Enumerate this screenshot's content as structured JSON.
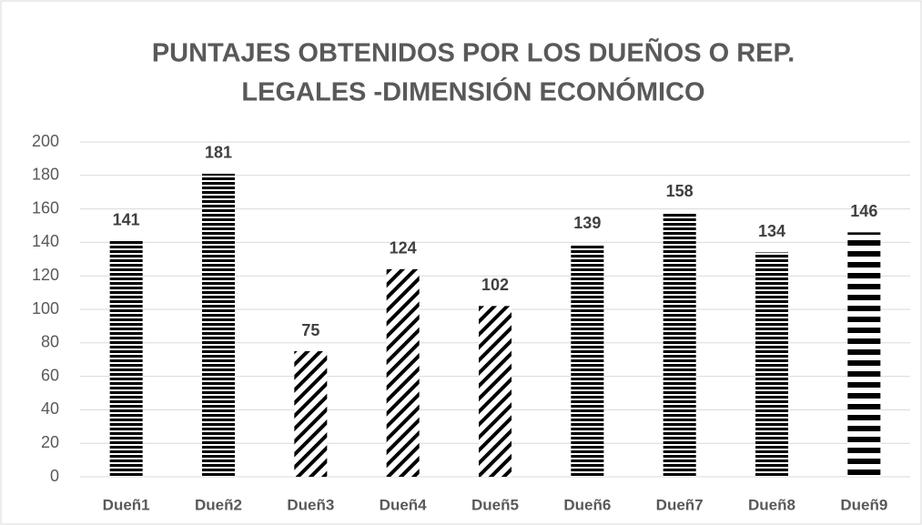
{
  "chart_data": {
    "type": "bar",
    "title": [
      "PUNTAJES OBTENIDOS POR LOS DUEÑOS O REP.",
      "LEGALES -DIMENSIÓN ECONÓMICO"
    ],
    "categories": [
      "Dueñ1",
      "Dueñ2",
      "Dueñ3",
      "Dueñ4",
      "Dueñ5",
      "Dueñ6",
      "Dueñ7",
      "Dueñ8",
      "Dueñ9"
    ],
    "values": [
      141,
      181,
      75,
      124,
      102,
      139,
      158,
      134,
      146
    ],
    "patterns": [
      "horizontal",
      "horizontal",
      "diagonal",
      "diagonal",
      "diagonal",
      "horizontal",
      "horizontal",
      "horizontal",
      "dashed"
    ],
    "color": "#000000",
    "ylim": [
      0,
      200
    ],
    "yticks": [
      0,
      20,
      40,
      60,
      80,
      100,
      120,
      140,
      160,
      180,
      200
    ],
    "grid": true
  }
}
